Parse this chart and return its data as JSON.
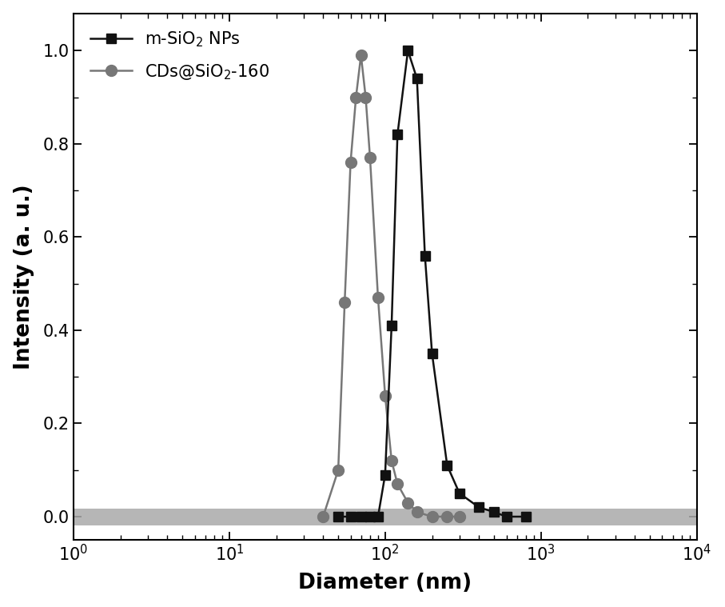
{
  "title": "",
  "xlabel": "Diameter (nm)",
  "ylabel": "Intensity (a. u.)",
  "xlim": [
    1,
    10000
  ],
  "ylim": [
    -0.05,
    1.08
  ],
  "yticks": [
    0.0,
    0.2,
    0.4,
    0.6,
    0.8,
    1.0
  ],
  "series1_label": "m-SiO$_2$ NPs",
  "series1_color": "#111111",
  "series1_marker": "s",
  "series1_x": [
    50,
    60,
    70,
    80,
    90,
    100,
    110,
    120,
    140,
    160,
    180,
    200,
    250,
    300,
    400,
    500,
    600,
    800
  ],
  "series1_y": [
    0.0,
    0.0,
    0.0,
    0.0,
    0.0,
    0.09,
    0.41,
    0.82,
    1.0,
    0.94,
    0.56,
    0.35,
    0.11,
    0.05,
    0.02,
    0.01,
    0.0,
    0.0
  ],
  "series2_label": "CDs@SiO$_2$-160",
  "series2_color": "#777777",
  "series2_marker": "o",
  "series2_x": [
    40,
    50,
    55,
    60,
    65,
    70,
    75,
    80,
    90,
    100,
    110,
    120,
    140,
    160,
    200,
    250,
    300
  ],
  "series2_y": [
    0.0,
    0.1,
    0.46,
    0.76,
    0.9,
    0.99,
    0.9,
    0.77,
    0.47,
    0.26,
    0.12,
    0.07,
    0.03,
    0.01,
    0.0,
    0.0,
    0.0
  ],
  "band_color": "#888888",
  "background_color": "#ffffff"
}
